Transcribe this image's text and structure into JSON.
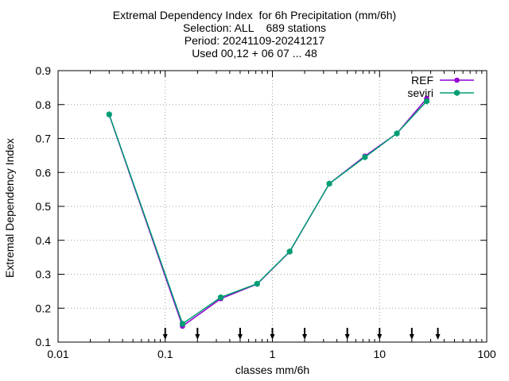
{
  "title_lines": [
    "Extremal Dependency Index  for 6h Precipitation (mm/6h)",
    "Selection: ALL    689 stations",
    "Period: 20241109-20241217",
    "Used 00,12 + 06 07 ... 48"
  ],
  "chart_data": {
    "type": "line",
    "title": "Extremal Dependency Index  for 6h Precipitation (mm/6h)",
    "xlabel": "classes mm/6h",
    "ylabel": "Extremal Dependency Index",
    "xscale": "log",
    "xlim": [
      0.01,
      100
    ],
    "ylim": [
      0.1,
      0.9
    ],
    "x_ticks": [
      0.01,
      0.1,
      1,
      10,
      100
    ],
    "x_tick_labels": [
      "0.01",
      "0.1",
      "1",
      "10",
      "100"
    ],
    "y_ticks": [
      0.1,
      0.2,
      0.3,
      0.4,
      0.5,
      0.6,
      0.7,
      0.8,
      0.9
    ],
    "y_tick_labels": [
      "0.1",
      "0.2",
      "0.3",
      "0.4",
      "0.5",
      "0.6",
      "0.7",
      "0.8",
      "0.9"
    ],
    "grid": true,
    "legend_position": "top-right",
    "class_markers": [
      0.1,
      0.2,
      0.5,
      1,
      2,
      5,
      10,
      20,
      35
    ],
    "series": [
      {
        "name": "REF",
        "color": "#9400d3",
        "x": [
          0.03,
          0.145,
          0.33,
          0.72,
          1.45,
          3.4,
          7.3,
          14.5,
          27.5
        ],
        "y": [
          0.77,
          0.147,
          0.228,
          0.271,
          0.366,
          0.567,
          0.648,
          0.715,
          0.818
        ]
      },
      {
        "name": "seviri",
        "color": "#009e73",
        "x": [
          0.03,
          0.145,
          0.33,
          0.72,
          1.45,
          3.4,
          7.3,
          14.5,
          27.5
        ],
        "y": [
          0.771,
          0.154,
          0.232,
          0.272,
          0.367,
          0.567,
          0.645,
          0.715,
          0.81
        ]
      }
    ]
  }
}
